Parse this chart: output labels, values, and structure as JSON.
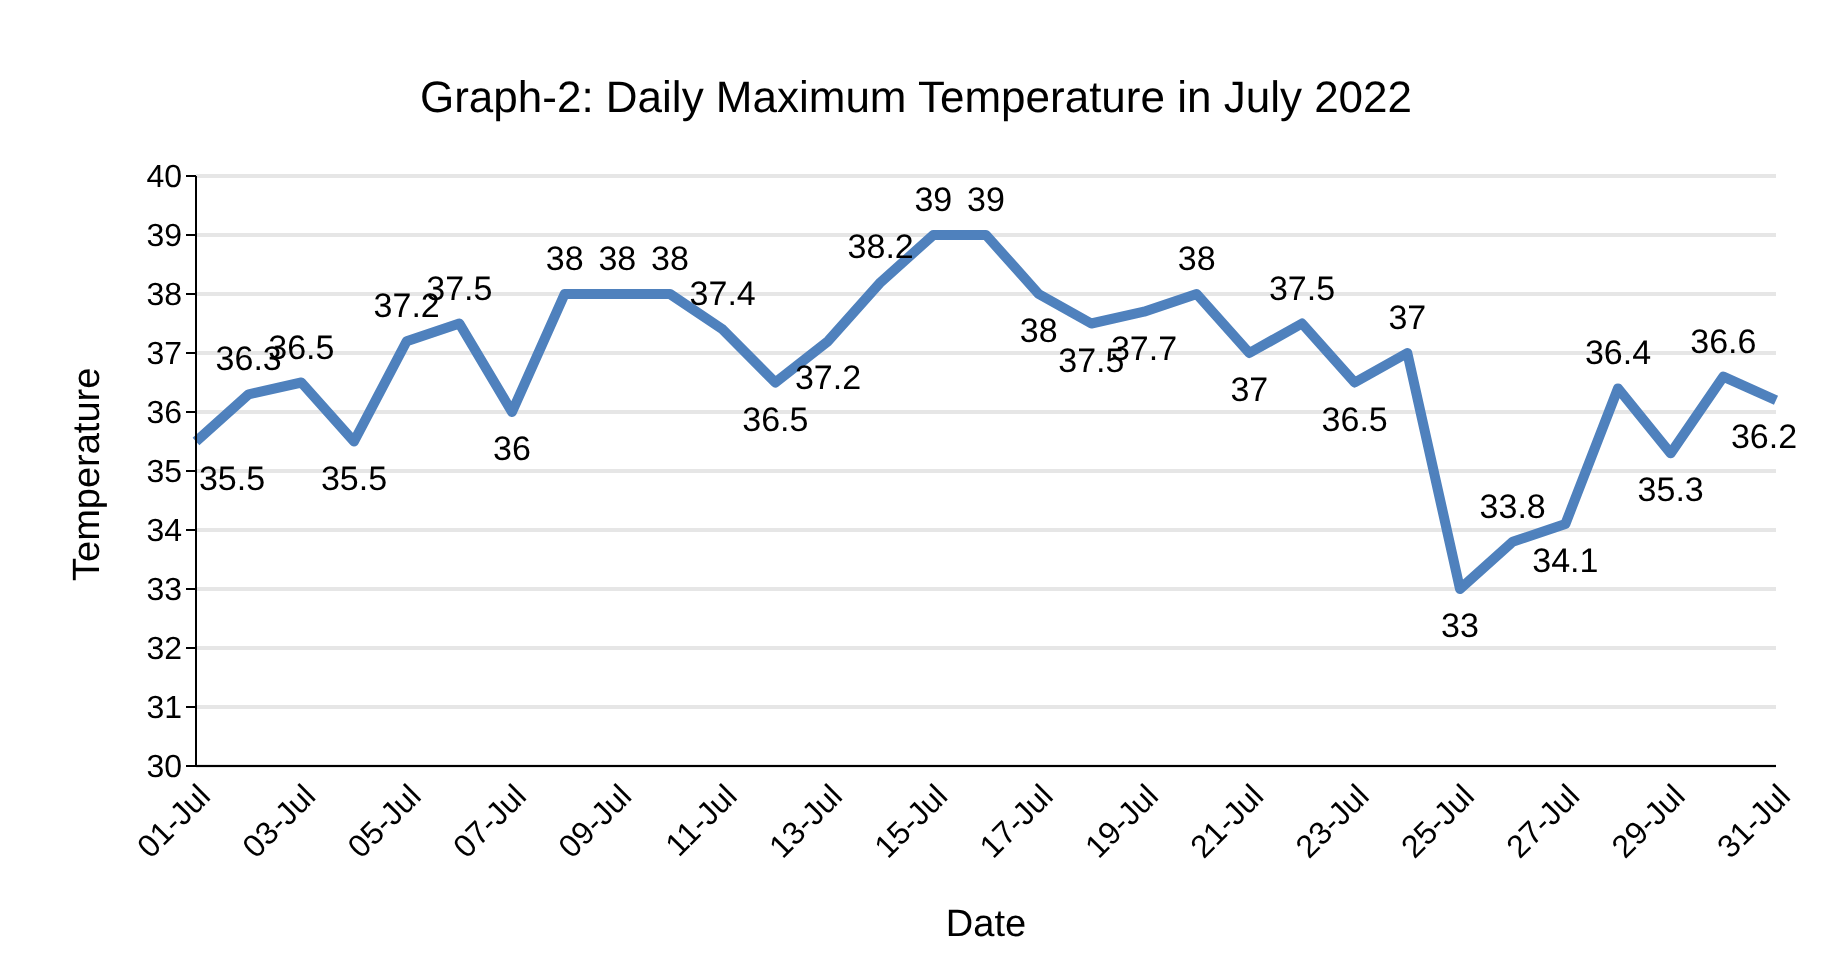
{
  "chart_data": {
    "type": "line",
    "title": "Graph-2: Daily Maximum Temperature in July 2022",
    "xlabel": "Date",
    "ylabel": "Temperature",
    "categories": [
      "01-Jul",
      null,
      "03-Jul",
      null,
      "05-Jul",
      null,
      "07-Jul",
      null,
      "09-Jul",
      null,
      "11-Jul",
      null,
      "13-Jul",
      null,
      "15-Jul",
      null,
      "17-Jul",
      null,
      "19-Jul",
      null,
      "21-Jul",
      null,
      "23-Jul",
      null,
      "25-Jul",
      null,
      "27-Jul",
      null,
      "29-Jul",
      null,
      "31-Jul"
    ],
    "series": [
      {
        "color": "#4f81bd",
        "values": [
          35.5,
          36.3,
          36.5,
          35.5,
          37.2,
          37.5,
          36,
          38,
          38,
          38,
          37.4,
          36.5,
          37.2,
          38.2,
          39,
          39,
          38,
          37.5,
          37.7,
          38,
          37,
          37.5,
          36.5,
          37,
          33,
          33.8,
          34.1,
          36.4,
          35.3,
          36.6,
          36.2
        ]
      }
    ],
    "ylim": [
      30,
      40
    ],
    "yticks": [
      30,
      31,
      32,
      33,
      34,
      35,
      36,
      37,
      38,
      39,
      40
    ],
    "grid": "y",
    "legend": false,
    "marker": "none",
    "line_style": "solid",
    "data_labels": true
  }
}
